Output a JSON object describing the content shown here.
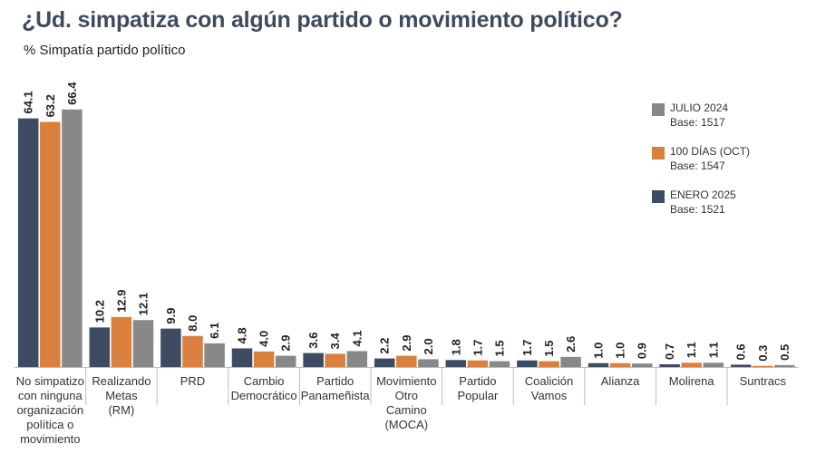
{
  "header": {
    "title": "¿Ud. simpatiza con algún partido o movimiento político?",
    "subtitle": "% Simpatía partido político"
  },
  "colors": {
    "julio": "#888888",
    "oct": "#d9803f",
    "enero": "#3d4b63"
  },
  "chart_data": {
    "type": "bar",
    "title": "¿Ud. simpatiza con algún partido o movimiento político?",
    "ylabel": "% Simpatía partido político",
    "xlabel": "",
    "ylim": [
      0,
      70
    ],
    "grid": false,
    "legend_position": "top-right",
    "categories": [
      [
        "No simpatizo",
        "con ninguna",
        "organización",
        "política o",
        "movimiento"
      ],
      [
        "Realizando",
        "Metas",
        "(RM)"
      ],
      [
        "PRD"
      ],
      [
        "Cambio",
        "Democrático"
      ],
      [
        "Partido",
        "Panameñista"
      ],
      [
        "Movimiento",
        "Otro",
        "Camino",
        "(MOCA)"
      ],
      [
        "Partido",
        "Popular"
      ],
      [
        "Coalición",
        "Vamos"
      ],
      [
        "Alianza"
      ],
      [
        "Molirena"
      ],
      [
        "Suntracs"
      ]
    ],
    "series": [
      {
        "name": "ENERO 2025",
        "base": "Base: 1521",
        "color_key": "enero",
        "values": [
          64.1,
          10.2,
          9.9,
          4.8,
          3.6,
          2.2,
          1.8,
          1.7,
          1.0,
          0.7,
          0.6
        ]
      },
      {
        "name": "100 DÍAS (OCT)",
        "base": "Base: 1547",
        "color_key": "oct",
        "values": [
          63.2,
          12.9,
          8.0,
          4.0,
          3.4,
          2.9,
          1.7,
          1.5,
          1.0,
          1.1,
          0.3
        ]
      },
      {
        "name": "JULIO 2024",
        "base": "Base: 1517",
        "color_key": "julio",
        "values": [
          66.4,
          12.1,
          6.1,
          2.9,
          4.1,
          2.0,
          1.5,
          2.6,
          0.9,
          1.1,
          0.5
        ]
      }
    ],
    "legend_order": [
      "JULIO 2024",
      "100 DÍAS (OCT)",
      "ENERO 2025"
    ]
  }
}
